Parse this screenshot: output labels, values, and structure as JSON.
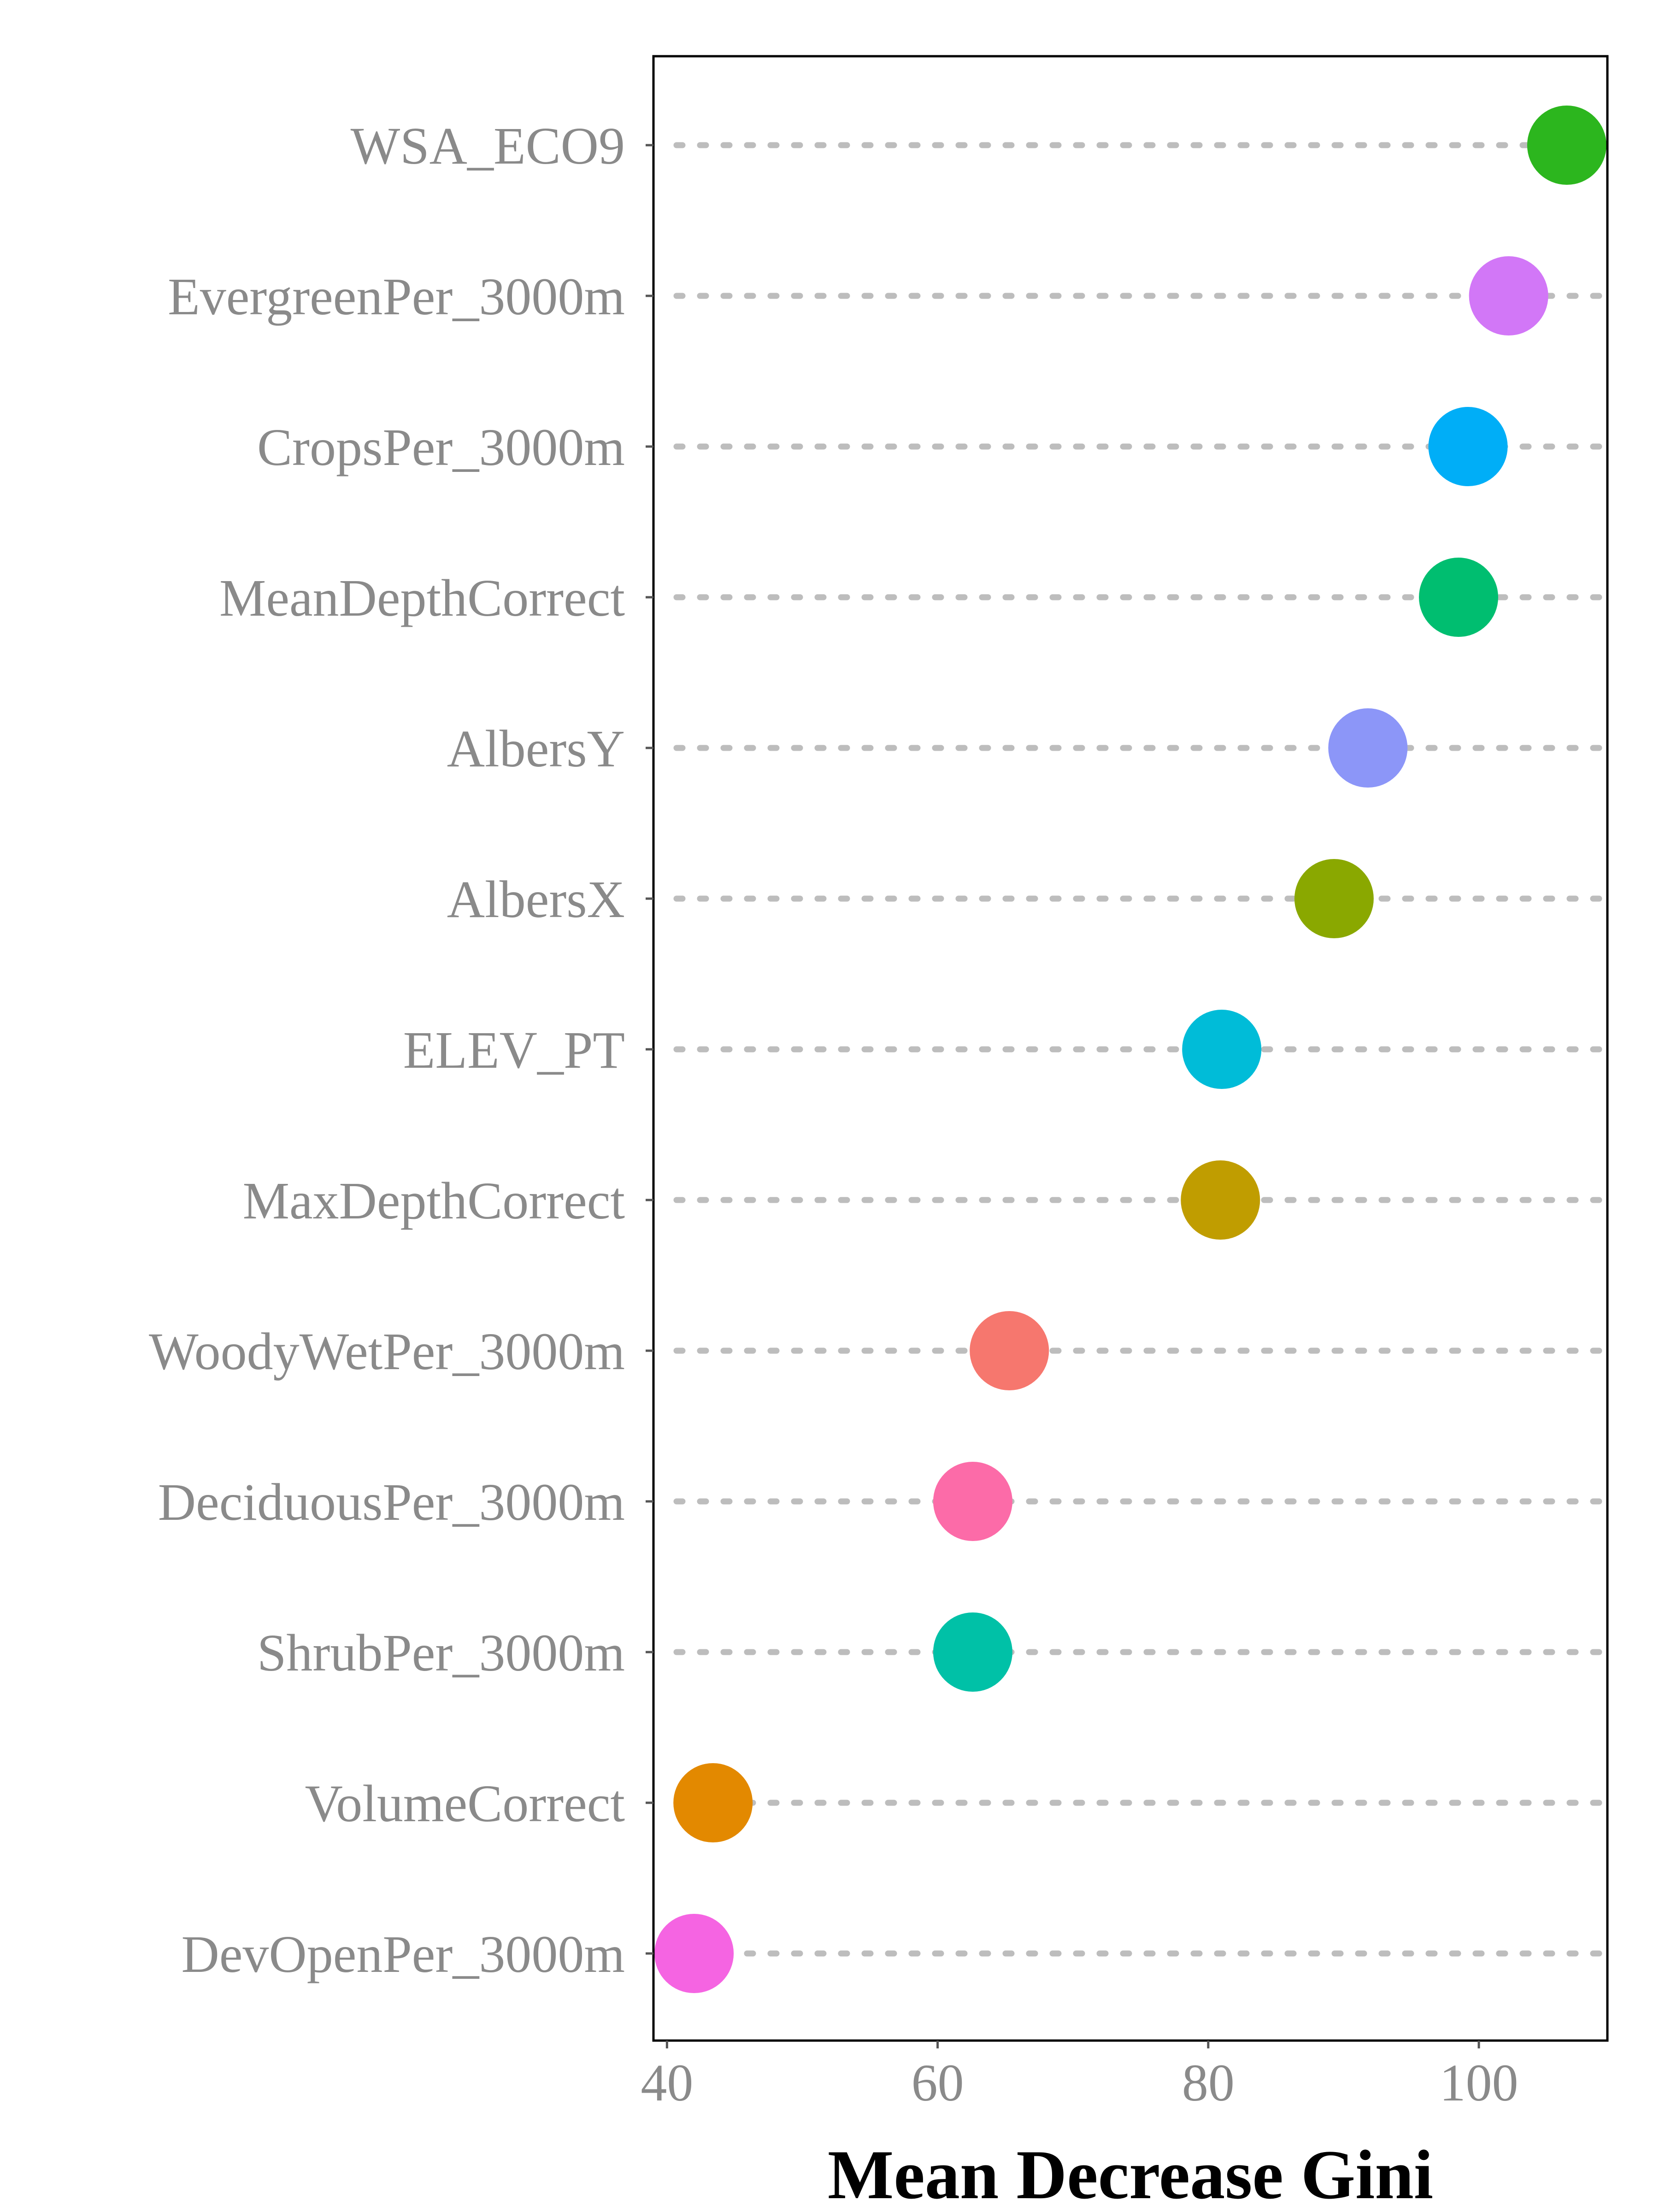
{
  "chart_data": {
    "type": "scatter",
    "xlabel": "Mean Decrease Gini",
    "ylabel": "",
    "xlim": [
      39,
      109.5
    ],
    "xticks": [
      40,
      60,
      80,
      100
    ],
    "grid": false,
    "legend": "none",
    "points": [
      {
        "label": "WSA_ECO9",
        "value": 106.5,
        "color": "#2cb61e"
      },
      {
        "label": "EvergreenPer_3000m",
        "value": 102.2,
        "color": "#d277f7"
      },
      {
        "label": "CropsPer_3000m",
        "value": 99.2,
        "color": "#00aef7"
      },
      {
        "label": "MeanDepthCorrect",
        "value": 98.5,
        "color": "#00be70"
      },
      {
        "label": "AlbersY",
        "value": 91.8,
        "color": "#8c96f8"
      },
      {
        "label": "AlbersX",
        "value": 89.3,
        "color": "#8aa800"
      },
      {
        "label": "ELEV_PT",
        "value": 81.0,
        "color": "#00bcd8"
      },
      {
        "label": "MaxDepthCorrect",
        "value": 80.9,
        "color": "#c09d00"
      },
      {
        "label": "WoodyWetPer_3000m",
        "value": 65.3,
        "color": "#f6776e"
      },
      {
        "label": "DeciduousPer_3000m",
        "value": 62.6,
        "color": "#fc6ba8"
      },
      {
        "label": "ShrubPer_3000m",
        "value": 62.6,
        "color": "#00c1a7"
      },
      {
        "label": "VolumeCorrect",
        "value": 43.4,
        "color": "#e38900"
      },
      {
        "label": "DevOpenPer_3000m",
        "value": 42.0,
        "color": "#f564e2"
      }
    ]
  }
}
